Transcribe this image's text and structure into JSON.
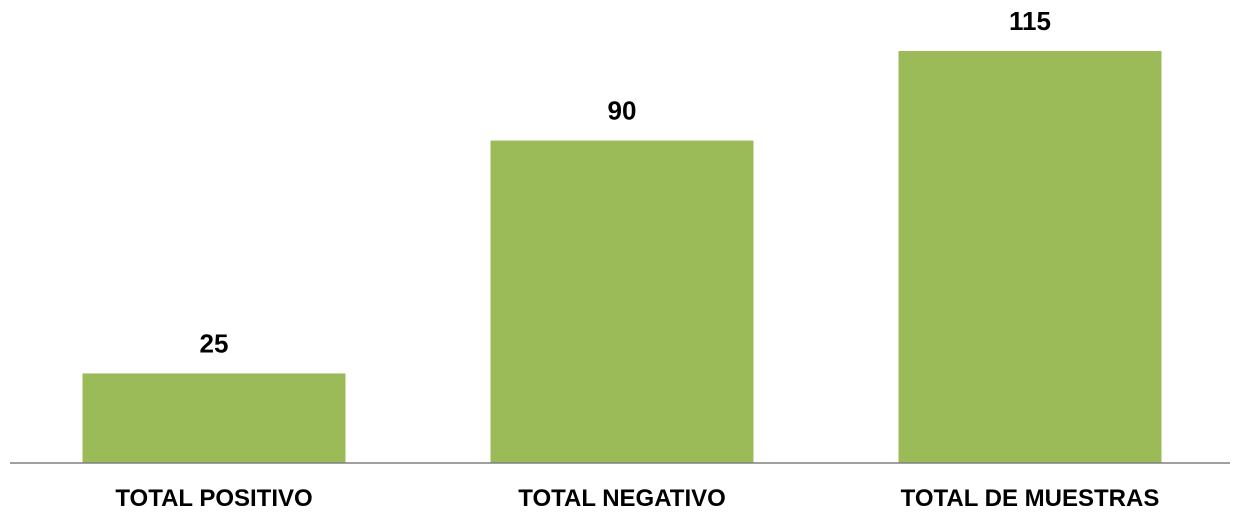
{
  "colors": {
    "bar": "#9bbb59",
    "axis": "#808080",
    "text": "#000000"
  },
  "chart_data": {
    "type": "bar",
    "categories": [
      "TOTAL POSITIVO",
      "TOTAL NEGATIVO",
      "TOTAL DE MUESTRAS"
    ],
    "values": [
      25,
      90,
      115
    ],
    "data_labels": [
      "25",
      "90",
      "115"
    ],
    "title": "",
    "xlabel": "",
    "ylabel": "",
    "ylim": [
      0,
      115
    ],
    "grid": false,
    "legend": "none"
  }
}
